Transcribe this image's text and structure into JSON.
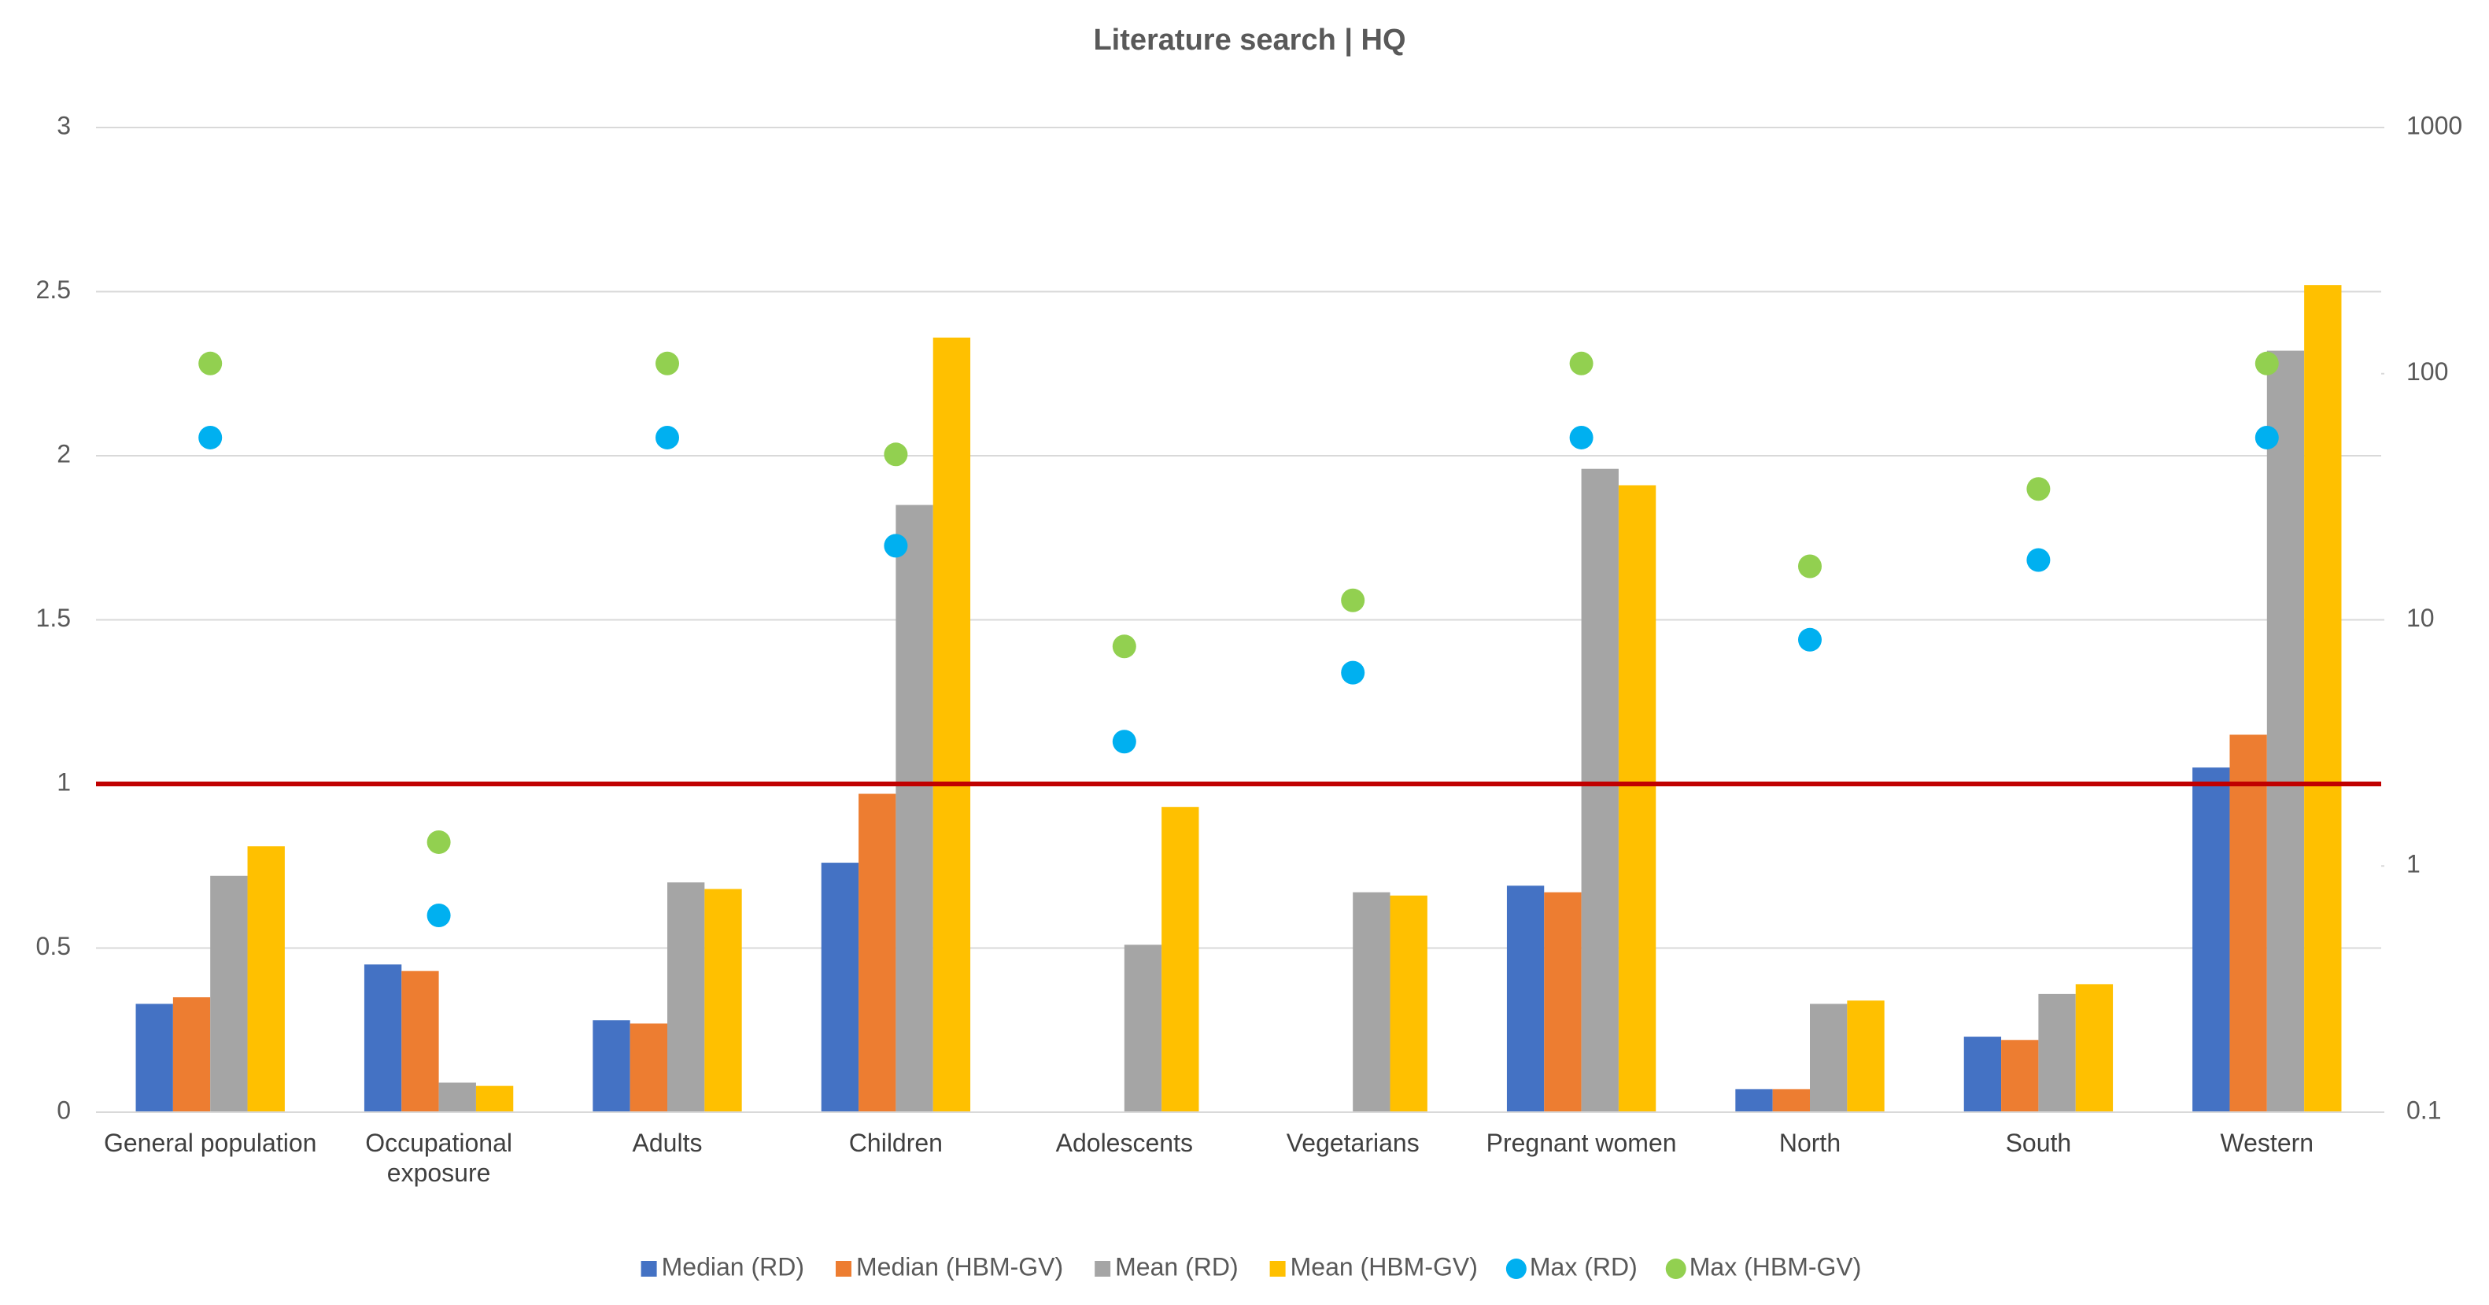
{
  "chart_data": {
    "type": "bar",
    "title": "Literature search | HQ",
    "categories": [
      "General population",
      "Occupational exposure",
      "Adults",
      "Children",
      "Adolescents",
      "Vegetarians",
      "Pregnant women",
      "North",
      "South",
      "Western"
    ],
    "series": [
      {
        "name": "Median (RD)",
        "color": "#4472c4",
        "type": "bar",
        "values": [
          0.33,
          0.45,
          0.28,
          0.76,
          null,
          null,
          0.69,
          0.07,
          0.23,
          1.05
        ]
      },
      {
        "name": "Median (HBM-GV)",
        "color": "#ed7d31",
        "type": "bar",
        "values": [
          0.35,
          0.43,
          0.27,
          0.97,
          null,
          null,
          0.67,
          0.07,
          0.22,
          1.15
        ]
      },
      {
        "name": "Mean (RD)",
        "color": "#a5a5a5",
        "type": "bar",
        "values": [
          0.72,
          0.09,
          0.7,
          1.85,
          0.51,
          0.67,
          1.96,
          0.33,
          0.36,
          2.32
        ]
      },
      {
        "name": "Mean (HBM-GV)",
        "color": "#ffc000",
        "type": "bar",
        "values": [
          0.81,
          0.08,
          0.68,
          2.36,
          0.93,
          0.66,
          1.91,
          0.34,
          0.39,
          2.52
        ]
      },
      {
        "name": "Max (RD)",
        "color": "#00b0f0",
        "type": "scatter",
        "axis": "y2",
        "values": [
          55,
          0.63,
          55,
          20,
          3.2,
          6.1,
          55,
          8.3,
          17.5,
          55
        ]
      },
      {
        "name": "Max (HBM-GV)",
        "color": "#92d050",
        "type": "scatter",
        "axis": "y2",
        "values": [
          110,
          1.25,
          110,
          47,
          7.8,
          12,
          110,
          16.5,
          34,
          110
        ]
      }
    ],
    "ylim": [
      0,
      3
    ],
    "yticks": [
      0,
      0.5,
      1,
      1.5,
      2,
      2.5,
      3
    ],
    "y2lim": [
      0.1,
      1000
    ],
    "y2ticks": [
      0.1,
      1,
      10,
      100,
      1000
    ],
    "y2_log": true,
    "grid": true,
    "reference_line": {
      "value": 1,
      "color": "#c00000"
    },
    "legend": "bottom"
  }
}
